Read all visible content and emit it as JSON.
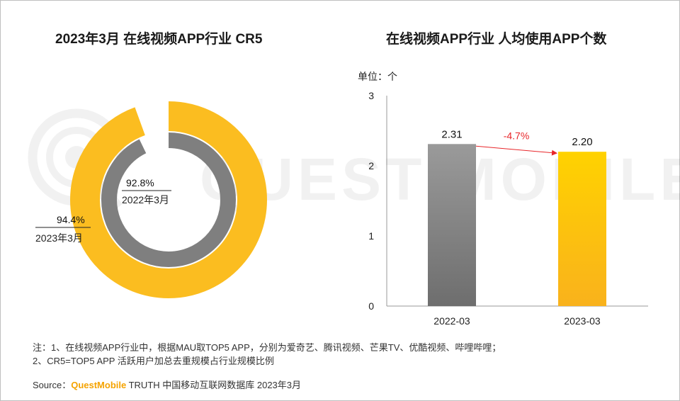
{
  "watermark": "QUEST MOBILE",
  "notes": {
    "line1": "注：1、在线视频APP行业中，根据MAU取TOP5 APP，分别为爱奇艺、腾讯视频、芒果TV、优酷视频、哔哩哔哩；",
    "line2": "2、CR5=TOP5 APP 活跃用户加总去重规模占行业规模比例"
  },
  "source": {
    "prefix": "Source：",
    "brand": "QuestMobile",
    "rest": " TRUTH 中国移动互联网数据库 2023年3月"
  },
  "colors": {
    "outer_ring": "#fbbd20",
    "inner_ring": "#7f7f7f",
    "bar_2022": "#7a7a7a",
    "bar_2023": "#fcc51a",
    "change_arrow": "#e8262a"
  },
  "chart_data": [
    {
      "type": "pie",
      "subtype": "nested-donut",
      "title": "2023年3月 在线视频APP行业 CR5",
      "series": [
        {
          "name": "2023年3月",
          "value_label": "94.4%",
          "value": 94.4,
          "ring": "outer"
        },
        {
          "name": "2022年3月",
          "value_label": "92.8%",
          "value": 92.8,
          "ring": "inner"
        }
      ]
    },
    {
      "type": "bar",
      "title": "在线视频APP行业 人均使用APP个数",
      "unit_label": "单位：个",
      "categories": [
        "2022-03",
        "2023-03"
      ],
      "values": [
        2.31,
        2.2
      ],
      "value_labels": [
        "2.31",
        "2.20"
      ],
      "yticks": [
        "0",
        "1",
        "2",
        "3"
      ],
      "ylim": [
        0,
        3
      ],
      "change_label": "-4.7%",
      "grid": false
    }
  ]
}
